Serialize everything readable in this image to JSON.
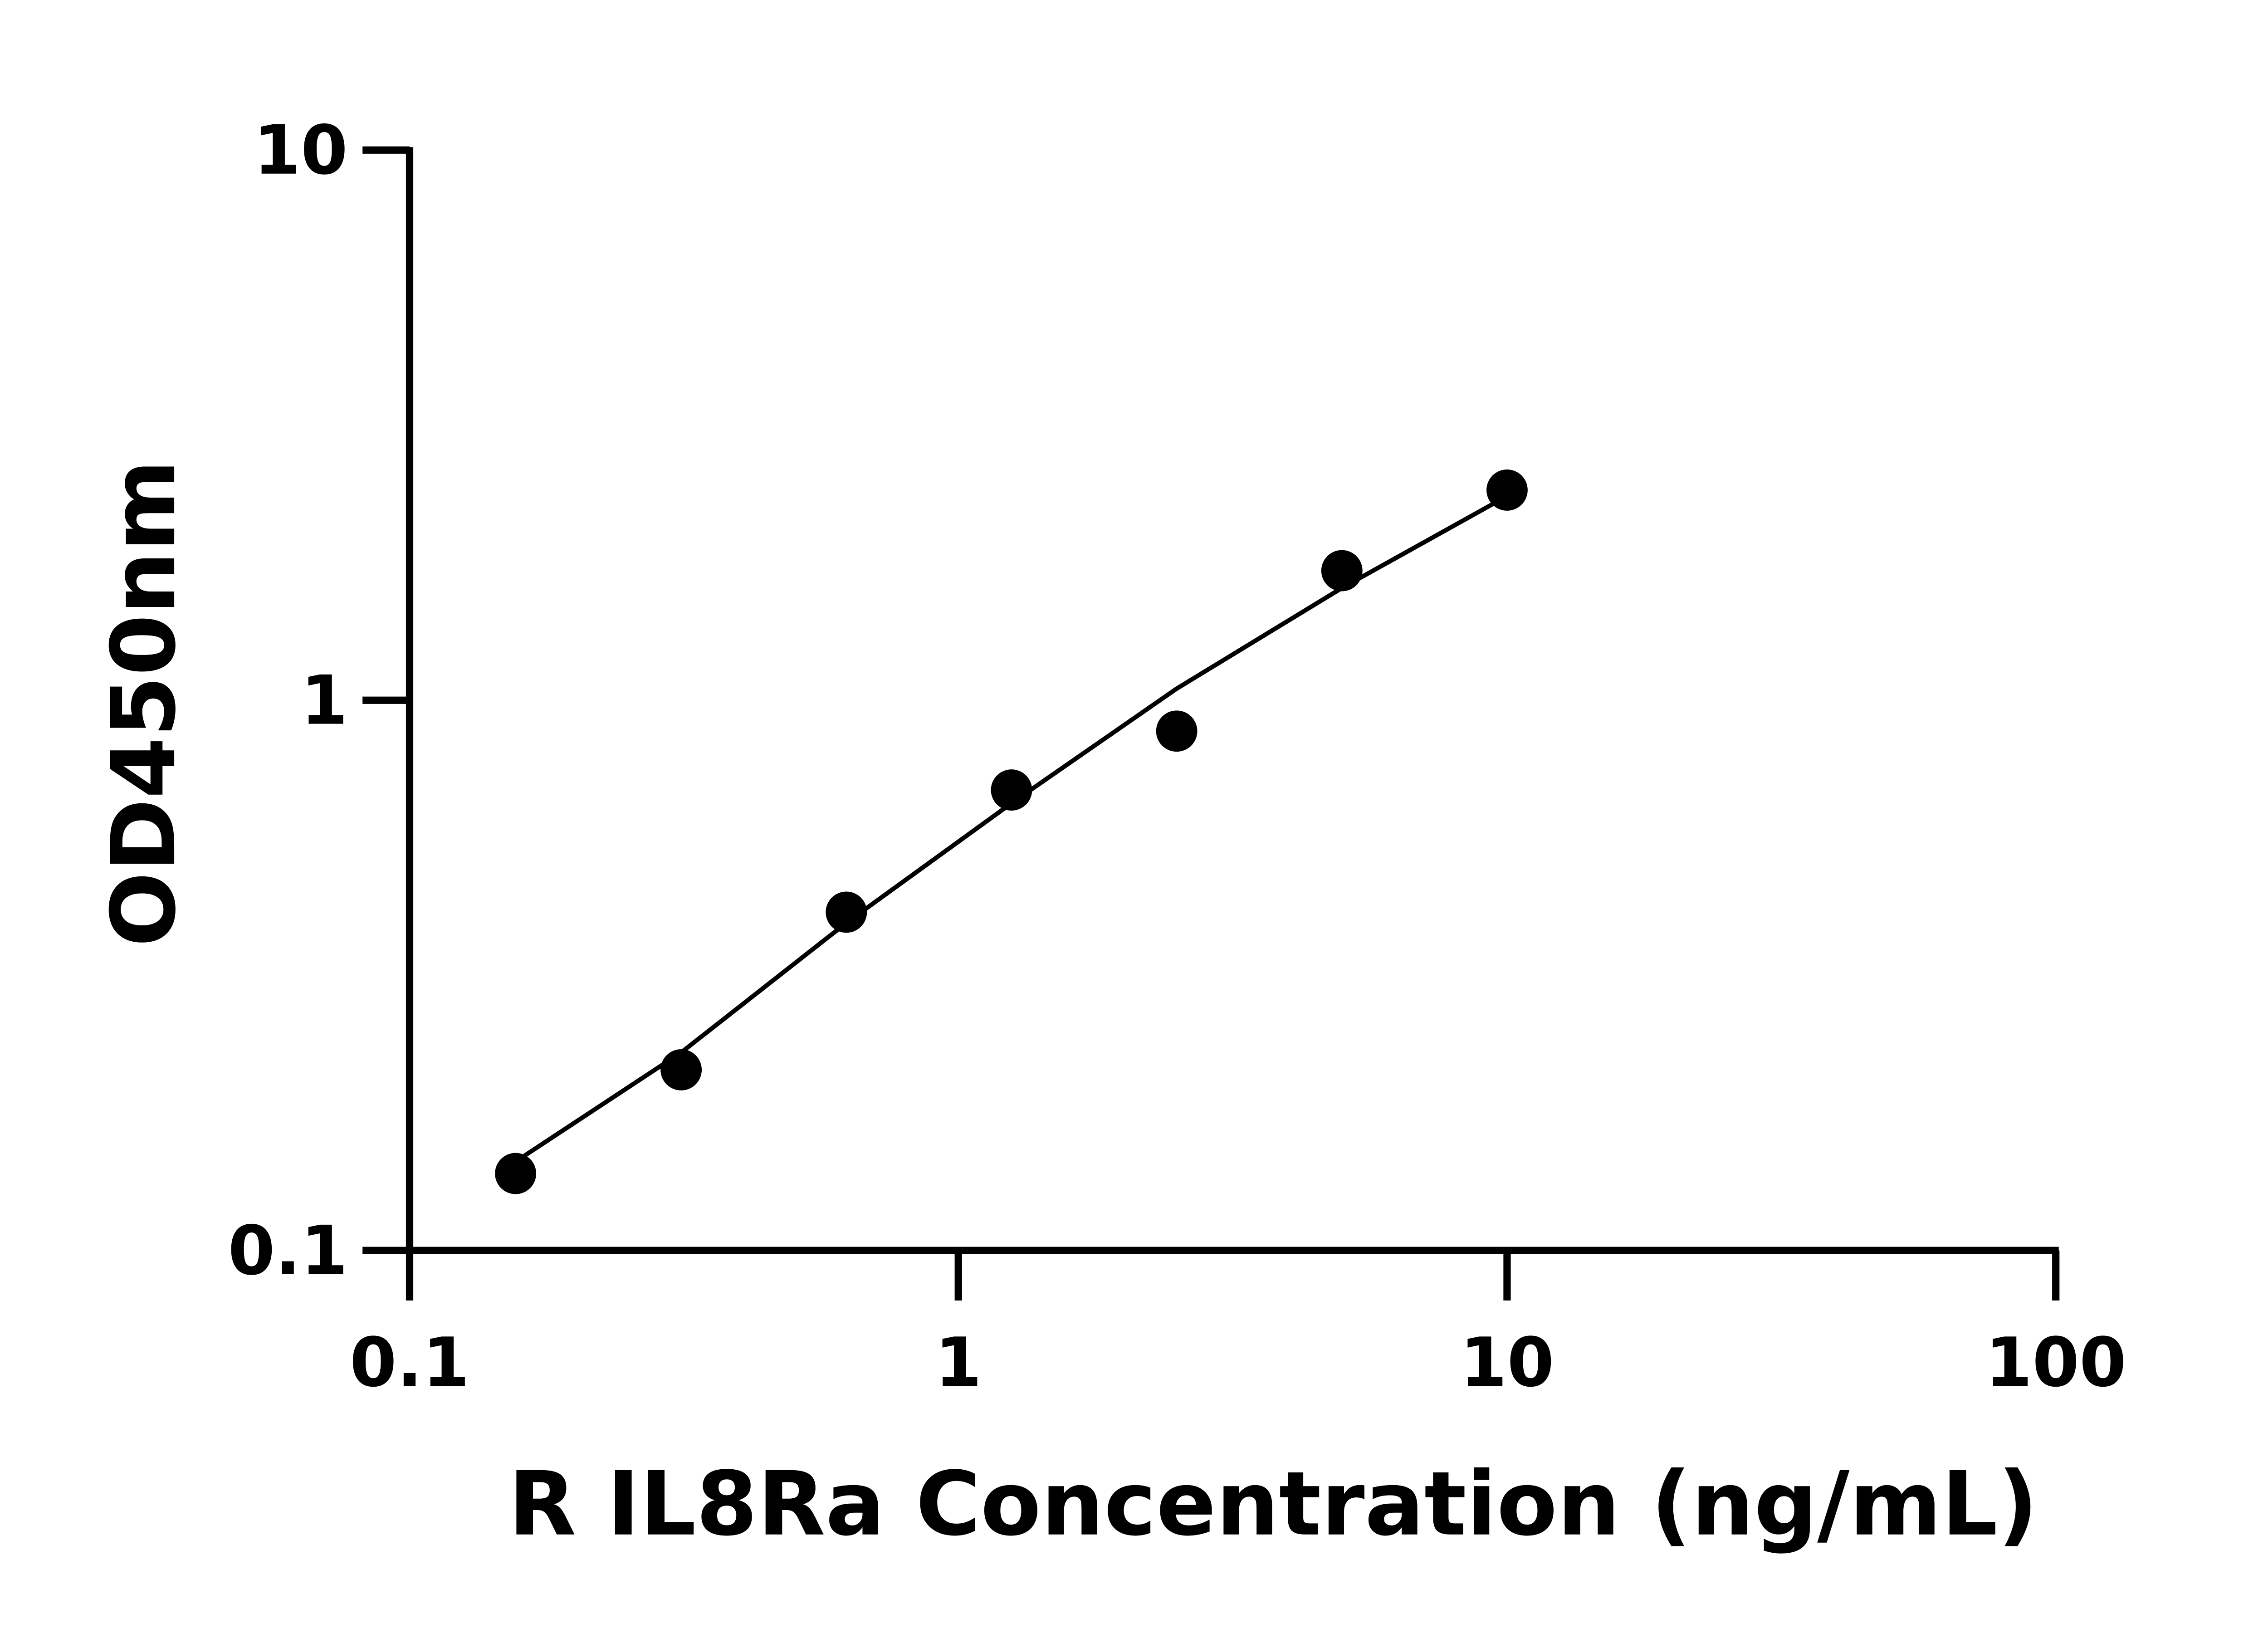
{
  "chart_data": {
    "type": "scatter",
    "title": "",
    "xlabel": "R IL8Ra Concentration (ng/mL)",
    "ylabel": "OD450nm",
    "xscale": "log",
    "yscale": "log",
    "xlim": [
      0.1,
      100
    ],
    "ylim": [
      0.1,
      10
    ],
    "x_ticks": [
      "0.1",
      "1",
      "10",
      "100"
    ],
    "y_ticks": [
      "0.1",
      "1",
      "10"
    ],
    "grid": false,
    "legend": "none",
    "color": "#000000",
    "series": [
      {
        "type": "scatter",
        "x": [
          0.156,
          0.3125,
          0.625,
          1.25,
          2.5,
          5,
          10
        ],
        "y": [
          0.138,
          0.213,
          0.412,
          0.687,
          0.879,
          1.72,
          2.41
        ]
      },
      {
        "type": "line",
        "x": [
          0.156,
          0.3125,
          0.625,
          1.25,
          2.5,
          5,
          10
        ],
        "y": [
          0.145,
          0.229,
          0.394,
          0.65,
          1.05,
          1.6,
          2.35
        ]
      }
    ]
  }
}
